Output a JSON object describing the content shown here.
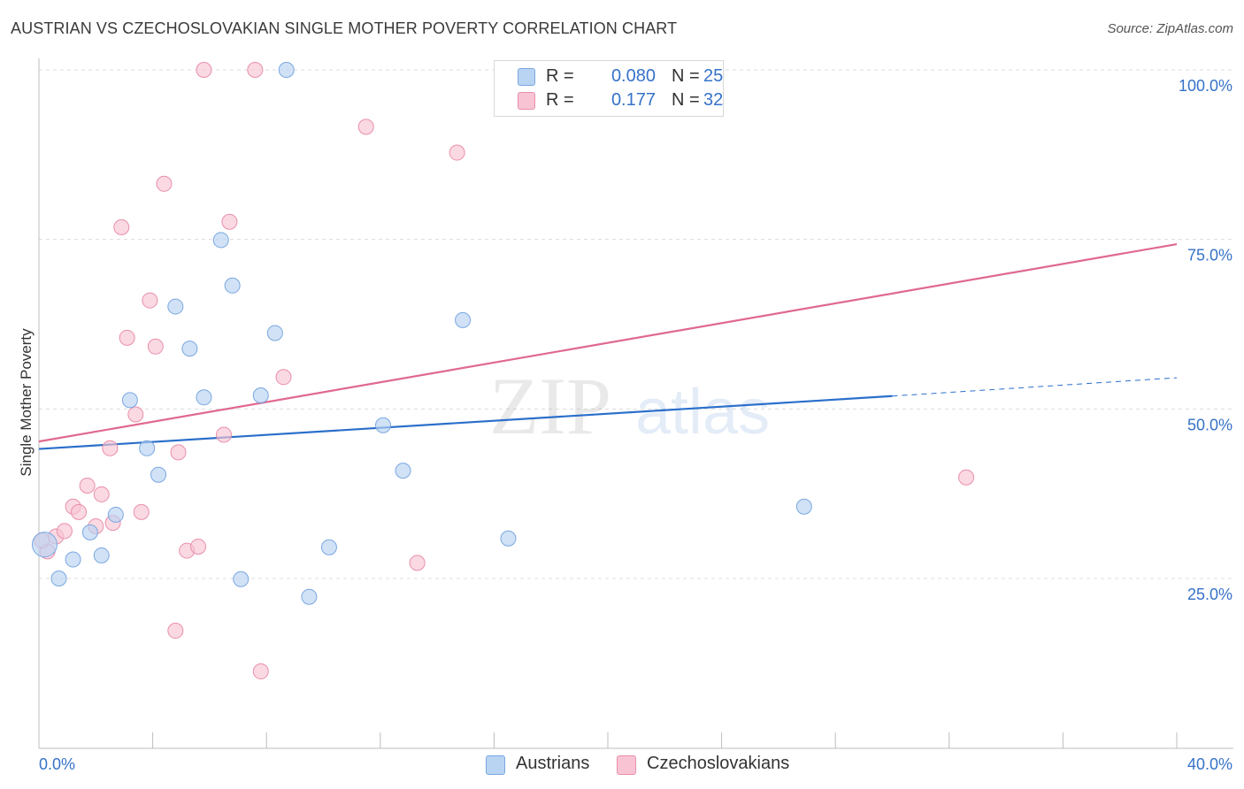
{
  "header": {
    "title": "AUSTRIAN VS CZECHOSLOVAKIAN SINGLE MOTHER POVERTY CORRELATION CHART",
    "source": "Source: ZipAtlas.com"
  },
  "watermark": {
    "part1": "ZIP",
    "part2": "atlas"
  },
  "legend": {
    "rows": [
      {
        "r_label": "R =",
        "r_value": "0.080",
        "n_label": "N =",
        "n_value": "25"
      },
      {
        "r_label": "R =",
        "r_value": "0.177",
        "n_label": "N =",
        "n_value": "32"
      }
    ],
    "bottom": [
      "Austrians",
      "Czechoslovakians"
    ]
  },
  "colors": {
    "austrians_fill": "#b9d3f3",
    "austrians_stroke": "#7aa7e0",
    "austrians_line": "#2a6fcb",
    "czech_fill": "#f8c4d3",
    "czech_stroke": "#e98fab",
    "czech_line": "#e06890",
    "axis_text": "#3672c9",
    "grid": "#dcdcdc"
  },
  "chart_data": {
    "type": "scatter",
    "title": "AUSTRIAN VS CZECHOSLOVAKIAN SINGLE MOTHER POVERTY CORRELATION CHART",
    "xlabel": "",
    "ylabel": "Single Mother Poverty",
    "xlim": [
      0,
      40
    ],
    "ylim": [
      0,
      100
    ],
    "x_tick_labels": [
      "0.0%",
      "40.0%"
    ],
    "y_ticks": [
      25,
      50,
      75,
      100
    ],
    "y_tick_labels": [
      "25.0%",
      "50.0%",
      "75.0%",
      "100.0%"
    ],
    "grid": true,
    "series": [
      {
        "name": "Austrians",
        "r": 0.08,
        "n": 25,
        "points": [
          [
            0.2,
            30.0
          ],
          [
            0.7,
            25.0
          ],
          [
            1.2,
            27.8
          ],
          [
            1.8,
            31.8
          ],
          [
            2.2,
            28.4
          ],
          [
            2.7,
            34.4
          ],
          [
            3.2,
            51.3
          ],
          [
            3.8,
            44.2
          ],
          [
            4.2,
            40.3
          ],
          [
            4.8,
            65.1
          ],
          [
            5.3,
            58.9
          ],
          [
            5.8,
            51.7
          ],
          [
            6.4,
            74.9
          ],
          [
            6.8,
            68.2
          ],
          [
            7.1,
            24.9
          ],
          [
            7.8,
            52.0
          ],
          [
            8.3,
            61.2
          ],
          [
            8.7,
            103.5
          ],
          [
            9.5,
            22.3
          ],
          [
            10.2,
            29.6
          ],
          [
            12.1,
            47.6
          ],
          [
            12.8,
            40.9
          ],
          [
            14.9,
            63.1
          ],
          [
            16.5,
            30.9
          ],
          [
            26.9,
            35.6
          ]
        ],
        "trend": {
          "x0": 0,
          "y0": 44.1,
          "x1": 30,
          "y1": 51.9,
          "dash_to_x": 40,
          "dash_to_y": 54.6
        }
      },
      {
        "name": "Czechoslovakians",
        "r": 0.177,
        "n": 32,
        "points": [
          [
            0.3,
            29.0
          ],
          [
            0.6,
            31.2
          ],
          [
            0.9,
            32.0
          ],
          [
            1.2,
            35.6
          ],
          [
            1.4,
            34.8
          ],
          [
            1.7,
            38.7
          ],
          [
            2.0,
            32.7
          ],
          [
            2.2,
            37.4
          ],
          [
            2.5,
            44.2
          ],
          [
            2.6,
            33.2
          ],
          [
            2.9,
            76.8
          ],
          [
            3.1,
            60.5
          ],
          [
            3.4,
            49.2
          ],
          [
            3.6,
            34.8
          ],
          [
            3.9,
            66.0
          ],
          [
            4.1,
            59.2
          ],
          [
            4.4,
            83.2
          ],
          [
            4.8,
            17.3
          ],
          [
            4.9,
            43.6
          ],
          [
            5.2,
            29.1
          ],
          [
            5.6,
            29.7
          ],
          [
            5.8,
            103.5
          ],
          [
            6.5,
            46.2
          ],
          [
            6.7,
            77.6
          ],
          [
            7.6,
            103.5
          ],
          [
            7.8,
            11.3
          ],
          [
            8.6,
            54.7
          ],
          [
            11.5,
            91.6
          ],
          [
            13.3,
            27.3
          ],
          [
            14.7,
            87.8
          ],
          [
            32.6,
            39.9
          ],
          [
            0.1,
            30.6
          ]
        ],
        "trend": {
          "x0": 0,
          "y0": 45.2,
          "x1": 40,
          "y1": 74.3
        }
      }
    ]
  }
}
